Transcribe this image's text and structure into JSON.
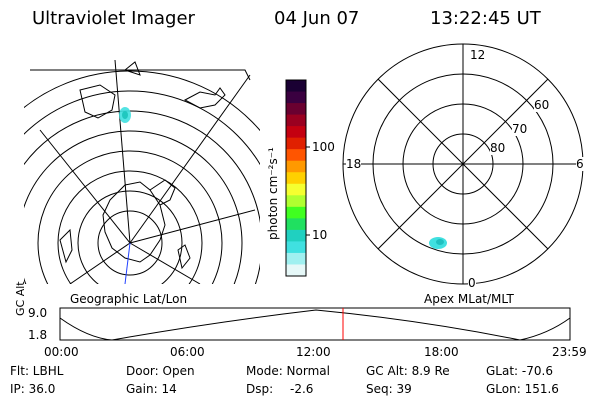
{
  "header": {
    "title": "Ultraviolet Imager",
    "date": "04 Jun 07",
    "time": "13:22:45 UT"
  },
  "colorbar": {
    "unit_label": "photon cm⁻²s⁻¹",
    "ticks": [
      "100",
      "10"
    ],
    "colors": [
      "#1a0033",
      "#3a0040",
      "#6a0030",
      "#9a0020",
      "#c40010",
      "#e02000",
      "#ff5500",
      "#ff9900",
      "#ffd000",
      "#f5ff30",
      "#b0ff30",
      "#40ff20",
      "#20e060",
      "#20d0c0",
      "#40e0e0",
      "#a0f0f0",
      "#e6f8f8"
    ]
  },
  "geo_map": {
    "label": "Geographic Lat/Lon"
  },
  "polar_plot": {
    "label": "Apex MLat/MLT",
    "mlt_labels": {
      "top": "12",
      "left": "18",
      "right": "6",
      "bottom": "0"
    },
    "lat_labels": [
      "60",
      "70",
      "80"
    ]
  },
  "altitude_plot": {
    "ylabel": "GC Alt",
    "yticks": [
      "9.0",
      "1.8"
    ],
    "xticks": [
      "00:00",
      "06:00",
      "12:00",
      "18:00",
      "23:59"
    ],
    "marker_color": "#ff0000"
  },
  "info": {
    "flt": "Flt: LBHL",
    "door": "Door: Open",
    "mode": "Mode: Normal",
    "gc_alt": "GC Alt: 8.9 Re",
    "glat": "GLat: -70.6",
    "ip": "IP: 36.0",
    "gain": "Gain: 14",
    "dsp_label": "Dsp:",
    "dsp_value": "-2.6",
    "seq": "Seq: 39",
    "glon": "GLon: 151.6"
  }
}
